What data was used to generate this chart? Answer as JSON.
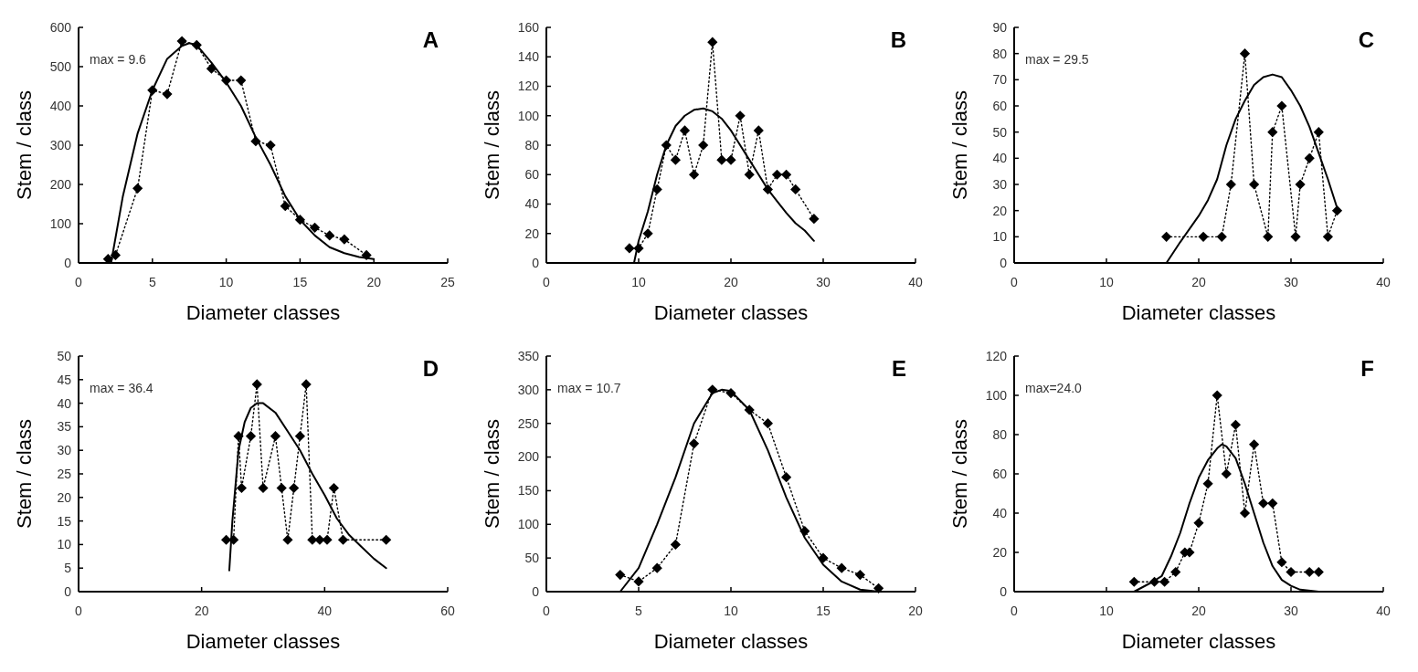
{
  "chart_data": [
    {
      "type": "line",
      "title": "A",
      "xlabel": "Diameter classes",
      "ylabel": "Stem / class",
      "xlim": [
        0,
        25
      ],
      "xticks": [
        0,
        5,
        10,
        15,
        20,
        25
      ],
      "ylim": [
        0,
        600
      ],
      "yticks": [
        0,
        100,
        200,
        300,
        400,
        500,
        600
      ],
      "annotations": [
        "max = 9.6"
      ],
      "series": [
        {
          "type": "line",
          "marker": "diamond",
          "line_style": "dotted",
          "color": "#000000",
          "x": [
            2,
            2.5,
            4,
            5,
            6,
            7,
            8,
            9,
            10,
            11,
            12,
            13,
            14,
            15,
            16,
            17,
            18,
            19.5
          ],
          "values": [
            10,
            20,
            190,
            440,
            430,
            565,
            555,
            495,
            465,
            465,
            310,
            300,
            145,
            110,
            90,
            70,
            60,
            20
          ]
        },
        {
          "type": "line",
          "marker": "none",
          "line_style": "solid",
          "color": "#000000",
          "x": [
            2.2,
            3,
            4,
            5,
            6,
            7,
            7.5,
            8,
            9,
            10,
            11,
            12,
            13,
            14,
            15,
            16,
            17,
            18,
            19,
            20
          ],
          "values": [
            0,
            170,
            330,
            440,
            520,
            553,
            560,
            555,
            510,
            460,
            400,
            320,
            250,
            170,
            110,
            70,
            40,
            25,
            15,
            10
          ]
        }
      ]
    },
    {
      "type": "line",
      "title": "B",
      "xlabel": "Diameter classes",
      "ylabel": "Stem / class",
      "xlim": [
        0,
        40
      ],
      "xticks": [
        0,
        10,
        20,
        30,
        40
      ],
      "ylim": [
        0,
        160
      ],
      "yticks": [
        0,
        20,
        40,
        60,
        80,
        100,
        120,
        140,
        160
      ],
      "series": [
        {
          "type": "line",
          "marker": "diamond",
          "line_style": "dotted",
          "color": "#000000",
          "x": [
            9,
            10,
            11,
            12,
            13,
            14,
            15,
            16,
            17,
            18,
            19,
            20,
            21,
            22,
            23,
            24,
            25,
            26,
            27,
            29
          ],
          "values": [
            10,
            10,
            20,
            50,
            80,
            70,
            90,
            60,
            80,
            150,
            70,
            70,
            100,
            60,
            90,
            50,
            60,
            60,
            50,
            30
          ]
        },
        {
          "type": "line",
          "marker": "none",
          "line_style": "solid",
          "color": "#000000",
          "x": [
            9.5,
            10,
            11,
            12,
            13,
            14,
            15,
            16,
            17,
            18,
            19,
            20,
            21,
            22,
            23,
            24,
            25,
            26,
            27,
            28,
            29
          ],
          "values": [
            0,
            15,
            35,
            60,
            80,
            93,
            100,
            104,
            105,
            103,
            98,
            90,
            80,
            70,
            60,
            50,
            42,
            34,
            27,
            22,
            15
          ]
        }
      ]
    },
    {
      "type": "line",
      "title": "C",
      "xlabel": "Diameter classes",
      "ylabel": "Stem / class",
      "xlim": [
        0,
        40
      ],
      "xticks": [
        0,
        10,
        20,
        30,
        40
      ],
      "ylim": [
        0,
        90
      ],
      "yticks": [
        0,
        10,
        20,
        30,
        40,
        50,
        60,
        70,
        80,
        90
      ],
      "annotations": [
        "max = 29.5"
      ],
      "series": [
        {
          "type": "line",
          "marker": "diamond",
          "line_style": "dotted",
          "color": "#000000",
          "x": [
            16.5,
            20.5,
            22.5,
            23.5,
            25,
            26,
            27.5,
            28,
            29,
            30.5,
            31,
            32,
            33,
            34,
            35
          ],
          "values": [
            10,
            10,
            10,
            30,
            80,
            30,
            10,
            50,
            60,
            10,
            30,
            40,
            50,
            10,
            20
          ]
        },
        {
          "type": "line",
          "marker": "none",
          "line_style": "solid",
          "color": "#000000",
          "x": [
            16.5,
            18,
            20,
            21,
            22,
            23,
            24,
            25,
            26,
            27,
            28,
            29,
            30,
            31,
            32,
            33,
            34,
            35
          ],
          "values": [
            0,
            8,
            18,
            24,
            32,
            45,
            55,
            62,
            68,
            71,
            72,
            71,
            66,
            60,
            52,
            42,
            32,
            21
          ]
        }
      ]
    },
    {
      "type": "line",
      "title": "D",
      "xlabel": "Diameter classes",
      "ylabel": "Stem / class",
      "xlim": [
        0,
        60
      ],
      "xticks": [
        0,
        20,
        40,
        60
      ],
      "ylim": [
        0,
        50
      ],
      "yticks": [
        0,
        5,
        10,
        15,
        20,
        25,
        30,
        35,
        40,
        45,
        50
      ],
      "annotations": [
        "max = 36.4"
      ],
      "series": [
        {
          "type": "line",
          "marker": "diamond",
          "line_style": "dotted",
          "color": "#000000",
          "x": [
            24,
            25.2,
            26,
            26.5,
            28,
            29,
            30,
            32,
            33,
            34,
            35,
            36,
            37,
            38,
            39.2,
            40.4,
            41.5,
            43,
            50
          ],
          "values": [
            11,
            11,
            33,
            22,
            33,
            44,
            22,
            33,
            22,
            11,
            22,
            33,
            44,
            11,
            11,
            11,
            22,
            11,
            11
          ]
        },
        {
          "type": "line",
          "marker": "none",
          "line_style": "solid",
          "color": "#000000",
          "x": [
            24.5,
            25,
            26,
            27,
            28,
            29,
            30,
            32,
            34,
            36,
            38,
            40,
            42,
            44,
            46,
            48,
            50
          ],
          "values": [
            4.5,
            15,
            30,
            36,
            39,
            40,
            40,
            38,
            34,
            30,
            25,
            20.5,
            15.5,
            12,
            9.5,
            7,
            5
          ]
        }
      ]
    },
    {
      "type": "line",
      "title": "E",
      "xlabel": "Diameter classes",
      "ylabel": "Stem / class",
      "xlim": [
        0,
        20
      ],
      "xticks": [
        0,
        5,
        10,
        15,
        20
      ],
      "ylim": [
        0,
        350
      ],
      "yticks": [
        0,
        50,
        100,
        150,
        200,
        250,
        300,
        350
      ],
      "annotations": [
        "max = 10.7"
      ],
      "series": [
        {
          "type": "line",
          "marker": "diamond",
          "line_style": "dotted",
          "color": "#000000",
          "x": [
            4,
            5,
            6,
            7,
            8,
            9,
            10,
            11,
            12,
            13,
            14,
            15,
            16,
            17,
            18
          ],
          "values": [
            25,
            15,
            35,
            70,
            220,
            300,
            295,
            270,
            250,
            170,
            90,
            50,
            35,
            25,
            5
          ]
        },
        {
          "type": "line",
          "marker": "none",
          "line_style": "solid",
          "color": "#000000",
          "x": [
            4,
            5,
            6,
            7,
            8,
            9,
            9.5,
            10,
            11,
            12,
            13,
            14,
            15,
            16,
            17,
            18
          ],
          "values": [
            0,
            35,
            100,
            170,
            250,
            295,
            300,
            298,
            270,
            210,
            140,
            80,
            40,
            15,
            3,
            0
          ]
        }
      ]
    },
    {
      "type": "line",
      "title": "F",
      "xlabel": "Diameter classes",
      "ylabel": "Stem / class",
      "xlim": [
        0,
        40
      ],
      "xticks": [
        0,
        10,
        20,
        30,
        40
      ],
      "ylim": [
        0,
        120
      ],
      "yticks": [
        0,
        20,
        40,
        60,
        80,
        100,
        120
      ],
      "annotations": [
        "max=24.0"
      ],
      "series": [
        {
          "type": "line",
          "marker": "diamond",
          "line_style": "dotted",
          "color": "#000000",
          "x": [
            13,
            15.2,
            16.3,
            17.5,
            18.5,
            19,
            20,
            21,
            22,
            23,
            24,
            25,
            26,
            27,
            28,
            29,
            30,
            32,
            33
          ],
          "values": [
            5,
            5,
            5,
            10,
            20,
            20,
            35,
            55,
            100,
            60,
            85,
            40,
            75,
            45,
            45,
            15,
            10,
            10,
            10
          ]
        },
        {
          "type": "line",
          "marker": "none",
          "line_style": "solid",
          "color": "#000000",
          "x": [
            13,
            15,
            16,
            17,
            18,
            19,
            20,
            21,
            22,
            22.5,
            23,
            24,
            25,
            26,
            27,
            28,
            29,
            30,
            31,
            33
          ],
          "values": [
            0,
            5,
            8,
            18,
            30,
            45,
            58,
            67,
            73,
            75,
            74,
            68,
            55,
            40,
            25,
            13,
            6,
            3,
            1,
            0
          ]
        }
      ]
    }
  ]
}
